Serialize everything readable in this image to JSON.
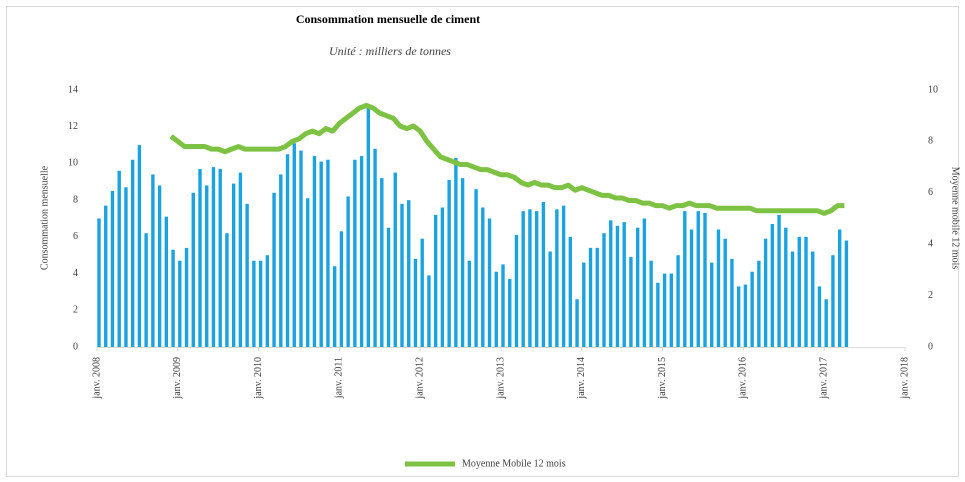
{
  "chart_data": {
    "type": "bar",
    "title": "Consommation mensuelle de ciment",
    "subtitle": "Unité : milliers de tonnes",
    "y_label": "Consommation mensuelle",
    "y2_label": "Moyenne mobile 12 mois",
    "categories": [
      "janv. 2008",
      null,
      null,
      null,
      null,
      null,
      null,
      null,
      null,
      null,
      null,
      null,
      "janv. 2009",
      null,
      null,
      null,
      null,
      null,
      null,
      null,
      null,
      null,
      null,
      null,
      "janv. 2010",
      null,
      null,
      null,
      null,
      null,
      null,
      null,
      null,
      null,
      null,
      null,
      "janv. 2011",
      null,
      null,
      null,
      null,
      null,
      null,
      null,
      null,
      null,
      null,
      null,
      "janv. 2012",
      null,
      null,
      null,
      null,
      null,
      null,
      null,
      null,
      null,
      null,
      null,
      "janv. 2013",
      null,
      null,
      null,
      null,
      null,
      null,
      null,
      null,
      null,
      null,
      null,
      "janv. 2014",
      null,
      null,
      null,
      null,
      null,
      null,
      null,
      null,
      null,
      null,
      null,
      "janv. 2015",
      null,
      null,
      null,
      null,
      null,
      null,
      null,
      null,
      null,
      null,
      null,
      "janv. 2016",
      null,
      null,
      null,
      null,
      null,
      null,
      null,
      null,
      null,
      null,
      null,
      "janv. 2017",
      null,
      null,
      null,
      null,
      null,
      null,
      null,
      null,
      null,
      null,
      null,
      "janv. 2018"
    ],
    "series": [
      {
        "type": "bar",
        "color": "#1aa3e0",
        "values": [
          7.0,
          7.7,
          8.5,
          9.6,
          8.7,
          10.2,
          11.0,
          6.2,
          9.4,
          8.8,
          7.1,
          5.3,
          4.7,
          5.4,
          8.4,
          9.7,
          8.8,
          9.8,
          9.7,
          6.2,
          8.9,
          9.5,
          7.8,
          4.7,
          4.7,
          5.0,
          8.4,
          9.4,
          10.5,
          11.1,
          10.7,
          8.1,
          10.4,
          10.1,
          10.2,
          4.4,
          6.3,
          8.2,
          10.2,
          10.4,
          13.1,
          10.8,
          9.2,
          6.5,
          9.5,
          7.8,
          8.0,
          4.8,
          5.9,
          3.9,
          7.2,
          7.6,
          9.1,
          10.3,
          9.2,
          4.7,
          8.6,
          7.6,
          7.0,
          4.1,
          4.5,
          3.7,
          6.1,
          7.4,
          7.5,
          7.4,
          7.9,
          5.2,
          7.5,
          7.7,
          6.0,
          2.6,
          4.6,
          5.4,
          5.4,
          6.2,
          6.9,
          6.6,
          6.8,
          4.9,
          6.5,
          7.0,
          4.7,
          3.5,
          4.0,
          4.0,
          5.0,
          7.4,
          6.4,
          7.4,
          7.3,
          4.6,
          6.4,
          5.9,
          4.8,
          3.3,
          3.4,
          4.1,
          4.7,
          5.9,
          6.7,
          7.2,
          6.5,
          5.2,
          6.0,
          6.0,
          5.2,
          3.3,
          2.6,
          5.0,
          6.4,
          5.8,
          null,
          null,
          null,
          null,
          null,
          null,
          null,
          null,
          null
        ]
      },
      {
        "type": "line",
        "name": "Moyenne Mobile 12 mois",
        "color": "#7dc242",
        "axis": "y2",
        "values": [
          null,
          null,
          null,
          null,
          null,
          null,
          null,
          null,
          null,
          null,
          null,
          8.2,
          8.0,
          7.8,
          7.8,
          7.8,
          7.8,
          7.7,
          7.7,
          7.6,
          7.7,
          7.8,
          7.7,
          7.7,
          7.7,
          7.7,
          7.7,
          7.7,
          7.8,
          8.0,
          8.1,
          8.3,
          8.4,
          8.3,
          8.5,
          8.4,
          8.7,
          8.9,
          9.1,
          9.3,
          9.4,
          9.3,
          9.1,
          9.0,
          8.9,
          8.6,
          8.5,
          8.6,
          8.4,
          8.0,
          7.7,
          7.4,
          7.3,
          7.2,
          7.1,
          7.1,
          7.0,
          6.9,
          6.9,
          6.8,
          6.7,
          6.7,
          6.6,
          6.4,
          6.3,
          6.4,
          6.3,
          6.3,
          6.2,
          6.2,
          6.3,
          6.1,
          6.2,
          6.1,
          6.0,
          5.9,
          5.9,
          5.8,
          5.8,
          5.7,
          5.7,
          5.6,
          5.6,
          5.5,
          5.5,
          5.4,
          5.5,
          5.5,
          5.6,
          5.5,
          5.5,
          5.5,
          5.4,
          5.4,
          5.4,
          5.4,
          5.4,
          5.4,
          5.3,
          5.3,
          5.3,
          5.3,
          5.3,
          5.3,
          5.3,
          5.3,
          5.3,
          5.3,
          5.2,
          5.3,
          5.5,
          5.5,
          null,
          null,
          null,
          null,
          null,
          null,
          null,
          null,
          null
        ]
      }
    ],
    "ylim": [
      0,
      14
    ],
    "yticks": [
      0,
      2,
      4,
      6,
      8,
      10,
      12,
      14
    ],
    "y2lim": [
      0,
      10
    ],
    "y2ticks": [
      0,
      2,
      4,
      6,
      8,
      10
    ],
    "grid": false,
    "legend": "bottom"
  }
}
